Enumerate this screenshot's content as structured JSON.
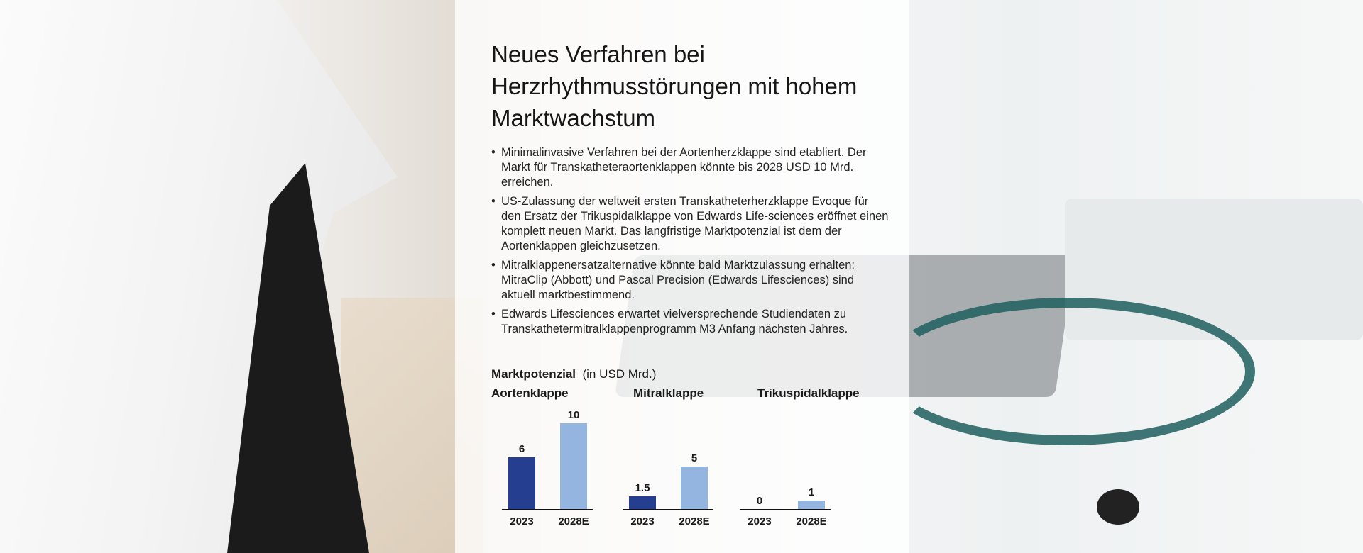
{
  "headline": "Neues Verfahren bei Herzrhythmusstörungen mit hohem Marktwachstum",
  "bullets": [
    "Minimalinvasive Verfahren bei der Aortenherzklappe sind etabliert. Der Markt für Transkatheteraortenklappen könnte bis 2028 USD 10 Mrd. erreichen.",
    "US-Zulassung der weltweit ersten Transkatheterherzklappe Evoque für den Ersatz der Trikuspidalklappe von Edwards Life-sciences eröffnet einen komplett neuen Markt. Das langfristige Marktpotenzial ist dem der Aortenklappen gleichzusetzen.",
    "Mitralklappenersatzalternative könnte bald Marktzulassung erhalten: MitraClip (Abbott) und Pascal Precision (Edwards Lifesciences) sind aktuell marktbestimmend.",
    "Edwards Lifesciences erwartet vielversprechende Studiendaten zu Transkathetermitralklappenprogramm M3 Anfang nächsten Jahres."
  ],
  "bullet_symbol": "•",
  "market": {
    "label": "Marktpotenzial",
    "unit": "(in USD Mrd.)"
  },
  "colors": {
    "y2023": "#253e8f",
    "y2028": "#93b5e0"
  },
  "chart_data": [
    {
      "type": "bar",
      "title": "Aortenklappe",
      "categories": [
        "2023",
        "2028E"
      ],
      "values": [
        6,
        10
      ],
      "labels": [
        "6",
        "10"
      ],
      "ylim": [
        0,
        10
      ]
    },
    {
      "type": "bar",
      "title": "Mitralklappe",
      "categories": [
        "2023",
        "2028E"
      ],
      "values": [
        1.5,
        5
      ],
      "labels": [
        "1.5",
        "5"
      ],
      "ylim": [
        0,
        10
      ]
    },
    {
      "type": "bar",
      "title": "Trikuspidalklappe",
      "categories": [
        "2023",
        "2028E"
      ],
      "values": [
        0,
        1
      ],
      "labels": [
        "0",
        "1"
      ],
      "ylim": [
        0,
        10
      ]
    }
  ]
}
